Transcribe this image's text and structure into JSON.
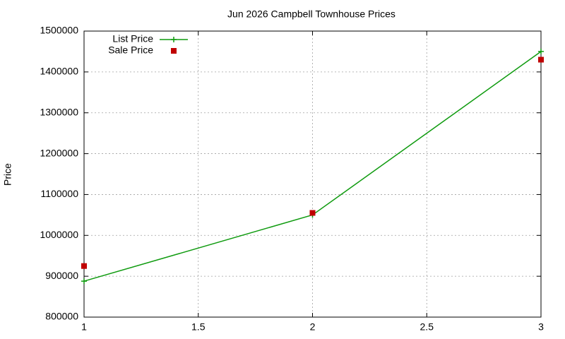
{
  "chart_data": {
    "type": "line",
    "title": "Jun 2026 Campbell Townhouse Prices",
    "y_label": "Price",
    "x": [
      1,
      2,
      3
    ],
    "series": [
      {
        "name": "List Price",
        "color": "#0f9b0f",
        "style": "linespoints",
        "values": [
          888000,
          1050000,
          1450000
        ]
      },
      {
        "name": "Sale Price",
        "color": "#c00000",
        "style": "points",
        "values": [
          925000,
          1055000,
          1430000
        ]
      }
    ],
    "xlim": [
      1,
      3
    ],
    "xticks": [
      1,
      1.5,
      2,
      2.5,
      3
    ],
    "ylim": [
      800000,
      1500000
    ],
    "yticks": [
      800000,
      900000,
      1000000,
      1100000,
      1200000,
      1300000,
      1400000,
      1500000
    ],
    "grid": true,
    "legend": "top-left"
  }
}
